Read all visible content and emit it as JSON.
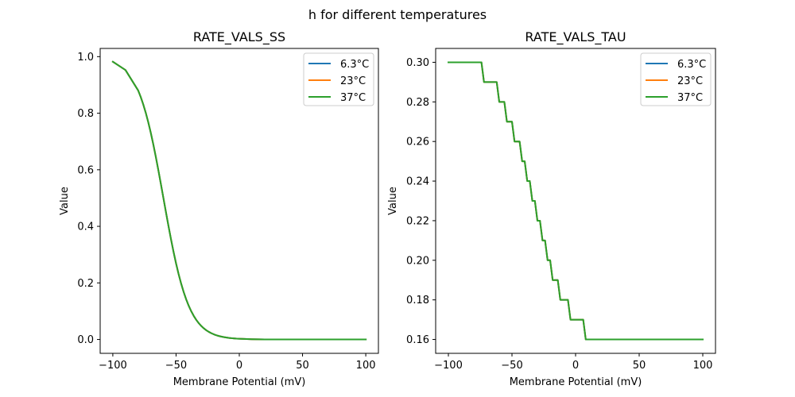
{
  "chart_data": [
    {
      "type": "line",
      "suptitle": "h for different temperatures",
      "title": "RATE_VALS_SS",
      "xlabel": "Membrane Potential (mV)",
      "ylabel": "Value",
      "xlim": [
        -110,
        110
      ],
      "ylim": [
        -0.049,
        1.029
      ],
      "xticks": [
        -100,
        -50,
        0,
        50,
        100
      ],
      "xtick_labels": [
        "−100",
        "−50",
        "0",
        "50",
        "100"
      ],
      "yticks": [
        0.0,
        0.2,
        0.4,
        0.6,
        0.8,
        1.0
      ],
      "ytick_labels": [
        "0.0",
        "0.2",
        "0.4",
        "0.6",
        "0.8",
        "1.0"
      ],
      "grid": false,
      "legend_position": "top-right",
      "x": [
        -100,
        -90,
        -80,
        -78,
        -76,
        -74,
        -72,
        -70,
        -68,
        -66,
        -64,
        -62,
        -60,
        -58,
        -56,
        -54,
        -52,
        -50,
        -48,
        -46,
        -44,
        -42,
        -40,
        -38,
        -36,
        -34,
        -32,
        -30,
        -28,
        -26,
        -24,
        -22,
        -20,
        -18,
        -16,
        -14,
        -12,
        -10,
        -8,
        -6,
        -4,
        -2,
        0,
        10,
        20,
        30,
        40,
        50,
        60,
        70,
        80,
        90,
        100
      ],
      "series": [
        {
          "name": "6.3°C",
          "color": "#1f77b4",
          "values": [
            0.982,
            0.9526,
            0.8808,
            0.8581,
            0.832,
            0.8022,
            0.7685,
            0.7311,
            0.69,
            0.6457,
            0.5987,
            0.5498,
            0.5,
            0.4502,
            0.4013,
            0.3543,
            0.31,
            0.2689,
            0.2315,
            0.1978,
            0.168,
            0.1419,
            0.1192,
            0.0998,
            0.0832,
            0.0691,
            0.0573,
            0.0474,
            0.0392,
            0.0323,
            0.0266,
            0.0219,
            0.018,
            0.0148,
            0.0121,
            0.01,
            0.0082,
            0.0067,
            0.0055,
            0.0045,
            0.0037,
            0.003,
            0.0025,
            0.0009,
            0.0003,
            0.0001,
            0.0,
            0.0,
            0.0,
            0.0,
            0.0,
            0.0,
            0.0
          ]
        },
        {
          "name": "23°C",
          "color": "#ff7f0e",
          "values": [
            0.982,
            0.9526,
            0.8808,
            0.8581,
            0.832,
            0.8022,
            0.7685,
            0.7311,
            0.69,
            0.6457,
            0.5987,
            0.5498,
            0.5,
            0.4502,
            0.4013,
            0.3543,
            0.31,
            0.2689,
            0.2315,
            0.1978,
            0.168,
            0.1419,
            0.1192,
            0.0998,
            0.0832,
            0.0691,
            0.0573,
            0.0474,
            0.0392,
            0.0323,
            0.0266,
            0.0219,
            0.018,
            0.0148,
            0.0121,
            0.01,
            0.0082,
            0.0067,
            0.0055,
            0.0045,
            0.0037,
            0.003,
            0.0025,
            0.0009,
            0.0003,
            0.0001,
            0.0,
            0.0,
            0.0,
            0.0,
            0.0,
            0.0,
            0.0
          ]
        },
        {
          "name": "37°C",
          "color": "#2ca02c",
          "values": [
            0.982,
            0.9526,
            0.8808,
            0.8581,
            0.832,
            0.8022,
            0.7685,
            0.7311,
            0.69,
            0.6457,
            0.5987,
            0.5498,
            0.5,
            0.4502,
            0.4013,
            0.3543,
            0.31,
            0.2689,
            0.2315,
            0.1978,
            0.168,
            0.1419,
            0.1192,
            0.0998,
            0.0832,
            0.0691,
            0.0573,
            0.0474,
            0.0392,
            0.0323,
            0.0266,
            0.0219,
            0.018,
            0.0148,
            0.0121,
            0.01,
            0.0082,
            0.0067,
            0.0055,
            0.0045,
            0.0037,
            0.003,
            0.0025,
            0.0009,
            0.0003,
            0.0001,
            0.0,
            0.0,
            0.0,
            0.0,
            0.0,
            0.0,
            0.0
          ]
        }
      ]
    },
    {
      "type": "line",
      "title": "RATE_VALS_TAU",
      "xlabel": "Membrane Potential (mV)",
      "ylabel": "Value",
      "xlim": [
        -110,
        110
      ],
      "ylim": [
        0.153,
        0.307
      ],
      "xticks": [
        -100,
        -50,
        0,
        50,
        100
      ],
      "xtick_labels": [
        "−100",
        "−50",
        "0",
        "50",
        "100"
      ],
      "yticks": [
        0.16,
        0.18,
        0.2,
        0.22,
        0.24,
        0.26,
        0.28,
        0.3
      ],
      "ytick_labels": [
        "0.16",
        "0.18",
        "0.20",
        "0.22",
        "0.24",
        "0.26",
        "0.28",
        "0.30"
      ],
      "grid": false,
      "legend_position": "top-right",
      "x": [
        -100,
        -74,
        -72,
        -62,
        -60,
        -56,
        -54,
        -50,
        -48,
        -44,
        -42,
        -40,
        -38,
        -36,
        -34,
        -32,
        -30,
        -28,
        -26,
        -24,
        -22,
        -20,
        -18,
        -14,
        -12,
        -6,
        -4,
        6,
        8,
        100
      ],
      "series": [
        {
          "name": "6.3°C",
          "color": "#1f77b4",
          "values": [
            0.3,
            0.3,
            0.29,
            0.29,
            0.28,
            0.28,
            0.27,
            0.27,
            0.26,
            0.26,
            0.25,
            0.25,
            0.24,
            0.24,
            0.23,
            0.23,
            0.22,
            0.22,
            0.21,
            0.21,
            0.2,
            0.2,
            0.19,
            0.19,
            0.18,
            0.18,
            0.17,
            0.17,
            0.16,
            0.16
          ]
        },
        {
          "name": "23°C",
          "color": "#ff7f0e",
          "values": [
            0.3,
            0.3,
            0.29,
            0.29,
            0.28,
            0.28,
            0.27,
            0.27,
            0.26,
            0.26,
            0.25,
            0.25,
            0.24,
            0.24,
            0.23,
            0.23,
            0.22,
            0.22,
            0.21,
            0.21,
            0.2,
            0.2,
            0.19,
            0.19,
            0.18,
            0.18,
            0.17,
            0.17,
            0.16,
            0.16
          ]
        },
        {
          "name": "37°C",
          "color": "#2ca02c",
          "values": [
            0.3,
            0.3,
            0.29,
            0.29,
            0.28,
            0.28,
            0.27,
            0.27,
            0.26,
            0.26,
            0.25,
            0.25,
            0.24,
            0.24,
            0.23,
            0.23,
            0.22,
            0.22,
            0.21,
            0.21,
            0.2,
            0.2,
            0.19,
            0.19,
            0.18,
            0.18,
            0.17,
            0.17,
            0.16,
            0.16
          ]
        }
      ]
    }
  ]
}
